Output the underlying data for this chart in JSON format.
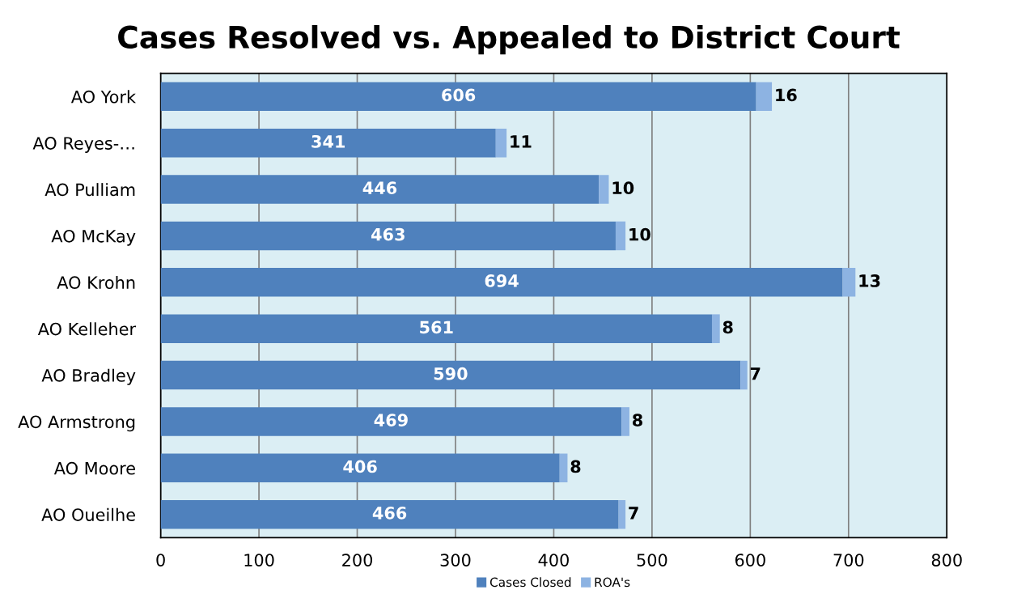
{
  "chart_data": {
    "type": "bar",
    "orientation": "horizontal",
    "stacked": true,
    "title": "Cases Resolved vs. Appealed to District Court",
    "categories": [
      "AO York",
      "AO Reyes-…",
      "AO Pulliam",
      "AO McKay",
      "AO Krohn",
      "AO Kelleher",
      "AO Bradley",
      "AO Armstrong",
      "AO Moore",
      "AO Oueilhe"
    ],
    "series": [
      {
        "name": "Cases Closed",
        "color": "#4f81bd",
        "values": [
          606,
          341,
          446,
          463,
          694,
          561,
          590,
          469,
          406,
          466
        ]
      },
      {
        "name": "ROA's",
        "color": "#8db3e2",
        "values": [
          16,
          11,
          10,
          10,
          13,
          8,
          7,
          8,
          8,
          7
        ]
      }
    ],
    "xlim": [
      0,
      800
    ],
    "xticks": [
      0,
      100,
      200,
      300,
      400,
      500,
      600,
      700,
      800
    ],
    "grid": "x",
    "legend": "bottom",
    "data_labels": true
  }
}
